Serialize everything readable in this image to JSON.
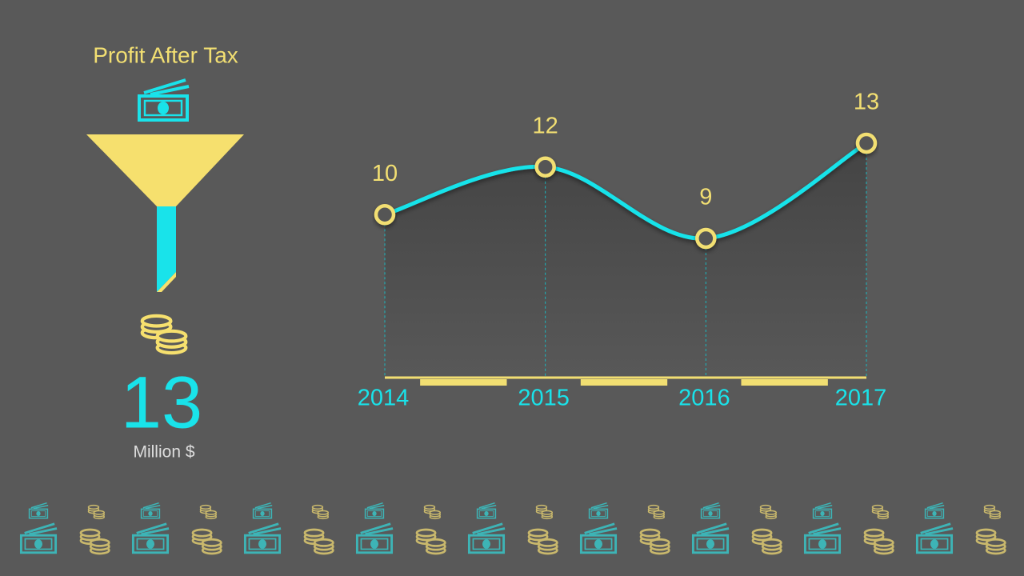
{
  "panel": {
    "title": "Profit After Tax",
    "value": 13,
    "unit": "Million $"
  },
  "chart_data": {
    "type": "line",
    "categories": [
      "2014",
      "2015",
      "2016",
      "2017"
    ],
    "values": [
      10,
      12,
      9,
      13
    ],
    "color": "#19e3ea",
    "marker_color": "#f2df72",
    "label_color": "#f2df72",
    "axis_color": "#f2df72"
  }
}
